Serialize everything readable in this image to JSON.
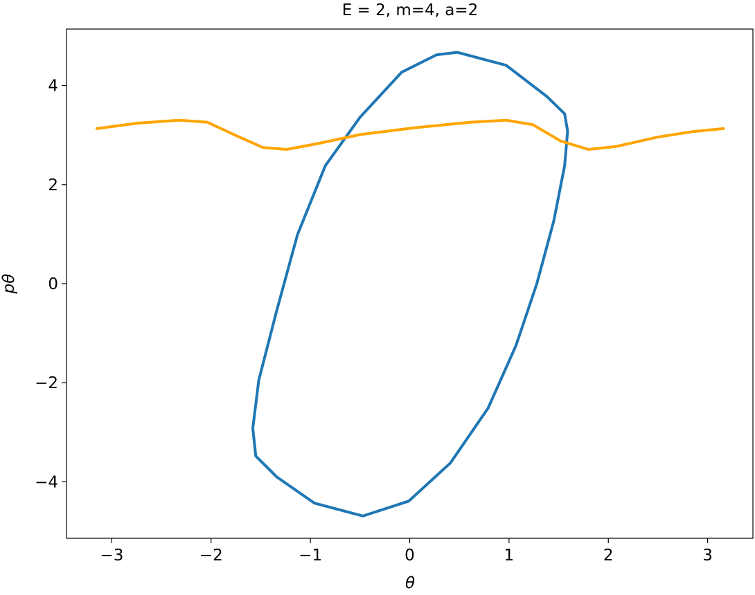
{
  "chart_data": {
    "type": "line",
    "title": "E = 2, m=4, a=2",
    "xlabel": "θ",
    "ylabel": "pθ",
    "xlim": [
      -3.456,
      3.456
    ],
    "ylim": [
      -5.14,
      5.14
    ],
    "xticks": [
      {
        "value": -3,
        "label": "−3"
      },
      {
        "value": -2,
        "label": "−2"
      },
      {
        "value": -1,
        "label": "−1"
      },
      0,
      1,
      2,
      3
    ],
    "yticks": [
      {
        "value": -4,
        "label": "−4"
      },
      {
        "value": -2,
        "label": "−2"
      },
      0,
      2,
      4
    ],
    "grid": false,
    "series": [
      {
        "color": "#1f77b4",
        "x": [
          0.48,
          0.97,
          1.38,
          1.56,
          1.59,
          1.56,
          1.45,
          1.28,
          1.07,
          0.79,
          0.41,
          -0.01,
          -0.47,
          -0.96,
          -1.34,
          -1.55,
          -1.58,
          -1.52,
          -1.34,
          -1.13,
          -0.85,
          -0.5,
          -0.08,
          0.27,
          0.48
        ],
        "values": [
          4.67,
          4.41,
          3.78,
          3.43,
          3.08,
          2.38,
          1.26,
          0,
          -1.25,
          -2.51,
          -3.62,
          -4.39,
          -4.69,
          -4.43,
          -3.9,
          -3.48,
          -2.92,
          -1.95,
          -0.55,
          0.99,
          2.38,
          3.36,
          4.27,
          4.62,
          4.67
        ]
      },
      {
        "color": "#ffa500",
        "x": [
          -3.15,
          -2.74,
          -2.32,
          -2.04,
          -1.76,
          -1.48,
          -1.24,
          -0.92,
          -0.5,
          0.06,
          0.62,
          0.97,
          1.24,
          1.52,
          1.8,
          2.08,
          2.5,
          2.85,
          3.16
        ],
        "values": [
          3.13,
          3.24,
          3.3,
          3.26,
          3.0,
          2.75,
          2.71,
          2.83,
          3.01,
          3.15,
          3.26,
          3.3,
          3.21,
          2.88,
          2.71,
          2.77,
          2.96,
          3.07,
          3.13
        ]
      }
    ]
  }
}
